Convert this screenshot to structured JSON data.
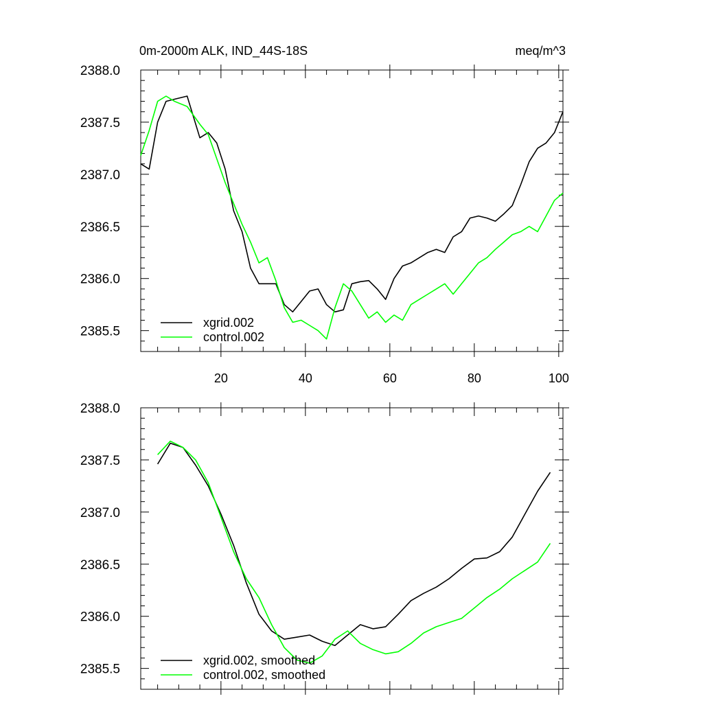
{
  "figure": {
    "title_left": "0m-2000m ALK, IND_44S-18S",
    "title_right": "meq/m^3"
  },
  "chart_data": [
    {
      "type": "line",
      "panel": "top",
      "title": "0m-2000m ALK, IND_44S-18S",
      "units": "meq/m^3",
      "xlabel": "",
      "ylabel": "",
      "xlim": [
        1,
        101
      ],
      "ylim": [
        2385.3,
        2388.0
      ],
      "x_ticks": [
        20,
        40,
        60,
        80,
        100
      ],
      "x_tick_labels": [
        "20",
        "40",
        "60",
        "80",
        "100"
      ],
      "y_ticks": [
        2385.5,
        2386.0,
        2386.5,
        2387.0,
        2387.5,
        2388.0
      ],
      "y_tick_labels": [
        "2385.5",
        "2386.0",
        "2386.5",
        "2387.0",
        "2387.5",
        "2388.0"
      ],
      "grid": false,
      "legend_position": "bottom-left",
      "series": [
        {
          "name": "xgrid.002",
          "color": "#000000",
          "x": [
            1,
            3,
            5,
            7,
            9,
            12,
            15,
            17,
            19,
            21,
            23,
            25,
            27,
            29,
            31,
            33,
            35,
            37,
            39,
            41,
            43,
            45,
            47,
            49,
            51,
            53,
            55,
            57,
            59,
            61,
            63,
            65,
            67,
            69,
            71,
            73,
            75,
            77,
            79,
            81,
            83,
            85,
            87,
            89,
            91,
            93,
            95,
            97,
            99,
            101
          ],
          "y": [
            2387.1,
            2387.05,
            2387.5,
            2387.7,
            2387.72,
            2387.75,
            2387.35,
            2387.4,
            2387.3,
            2387.05,
            2386.65,
            2386.45,
            2386.1,
            2385.95,
            2385.95,
            2385.95,
            2385.75,
            2385.68,
            2385.78,
            2385.88,
            2385.9,
            2385.75,
            2385.68,
            2385.7,
            2385.95,
            2385.97,
            2385.98,
            2385.9,
            2385.8,
            2386.0,
            2386.12,
            2386.15,
            2386.2,
            2386.25,
            2386.28,
            2386.25,
            2386.4,
            2386.45,
            2386.58,
            2386.6,
            2386.58,
            2386.55,
            2386.62,
            2386.7,
            2386.9,
            2387.12,
            2387.25,
            2387.3,
            2387.4,
            2387.6
          ]
        },
        {
          "name": "control.002",
          "color": "#00ff00",
          "x": [
            1,
            3,
            5,
            7,
            9,
            12,
            15,
            17,
            19,
            21,
            23,
            25,
            27,
            29,
            31,
            33,
            35,
            37,
            39,
            41,
            43,
            45,
            47,
            49,
            51,
            53,
            55,
            57,
            59,
            61,
            63,
            65,
            67,
            69,
            71,
            73,
            75,
            77,
            79,
            81,
            83,
            85,
            87,
            89,
            91,
            93,
            95,
            97,
            99,
            101
          ],
          "y": [
            2387.18,
            2387.42,
            2387.7,
            2387.75,
            2387.7,
            2387.65,
            2387.48,
            2387.38,
            2387.15,
            2386.92,
            2386.72,
            2386.52,
            2386.35,
            2386.15,
            2386.2,
            2385.98,
            2385.72,
            2385.58,
            2385.6,
            2385.55,
            2385.5,
            2385.42,
            2385.72,
            2385.95,
            2385.88,
            2385.75,
            2385.62,
            2385.68,
            2385.58,
            2385.65,
            2385.6,
            2385.75,
            2385.8,
            2385.85,
            2385.9,
            2385.95,
            2385.85,
            2385.95,
            2386.05,
            2386.15,
            2386.2,
            2386.28,
            2386.35,
            2386.42,
            2386.45,
            2386.5,
            2386.45,
            2386.6,
            2386.75,
            2386.82
          ]
        }
      ]
    },
    {
      "type": "line",
      "panel": "bottom",
      "title": "",
      "xlabel": "",
      "ylabel": "",
      "xlim": [
        1,
        101
      ],
      "ylim": [
        2385.3,
        2388.0
      ],
      "x_ticks": [
        20,
        40,
        60,
        80,
        100
      ],
      "x_tick_labels": [],
      "y_ticks": [
        2385.5,
        2386.0,
        2386.5,
        2387.0,
        2387.5,
        2388.0
      ],
      "y_tick_labels": [
        "2385.5",
        "2386.0",
        "2386.5",
        "2387.0",
        "2387.5",
        "2388.0"
      ],
      "grid": false,
      "legend_position": "bottom-left",
      "series": [
        {
          "name": "xgrid.002, smoothed",
          "color": "#000000",
          "x": [
            5,
            8,
            11,
            14,
            17,
            20,
            23,
            26,
            29,
            32,
            35,
            38,
            41,
            44,
            47,
            50,
            53,
            56,
            59,
            62,
            65,
            68,
            71,
            74,
            77,
            80,
            83,
            86,
            89,
            92,
            95,
            98
          ],
          "y": [
            2387.46,
            2387.66,
            2387.62,
            2387.45,
            2387.25,
            2386.98,
            2386.68,
            2386.32,
            2386.02,
            2385.86,
            2385.78,
            2385.8,
            2385.82,
            2385.76,
            2385.72,
            2385.82,
            2385.92,
            2385.88,
            2385.9,
            2386.02,
            2386.15,
            2386.22,
            2386.28,
            2386.36,
            2386.46,
            2386.55,
            2386.56,
            2386.62,
            2386.76,
            2386.98,
            2387.2,
            2387.38
          ]
        },
        {
          "name": "control.002, smoothed",
          "color": "#00ff00",
          "x": [
            5,
            8,
            11,
            14,
            17,
            20,
            23,
            26,
            29,
            32,
            35,
            38,
            41,
            44,
            47,
            50,
            53,
            56,
            59,
            62,
            65,
            68,
            71,
            74,
            77,
            80,
            83,
            86,
            89,
            92,
            95,
            98
          ],
          "y": [
            2387.55,
            2387.68,
            2387.62,
            2387.5,
            2387.28,
            2386.95,
            2386.62,
            2386.36,
            2386.18,
            2385.92,
            2385.7,
            2385.58,
            2385.55,
            2385.62,
            2385.78,
            2385.86,
            2385.74,
            2385.68,
            2385.64,
            2385.66,
            2385.74,
            2385.84,
            2385.9,
            2385.94,
            2385.98,
            2386.08,
            2386.18,
            2386.26,
            2386.36,
            2386.44,
            2386.52,
            2386.7
          ]
        }
      ]
    }
  ]
}
